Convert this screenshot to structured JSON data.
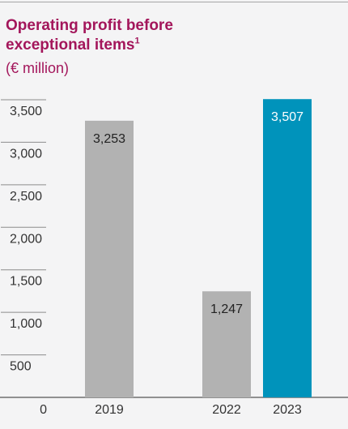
{
  "title_line1": "Operating profit before",
  "title_line2": "exceptional items",
  "title_footnote": "1",
  "unit": "(€ million)",
  "colors": {
    "title": "#a3165b",
    "bar_grey": "#b2b2b2",
    "bar_highlight": "#0093bb",
    "axis": "#555555",
    "background": "#f4f4f5"
  },
  "chart_data": {
    "type": "bar",
    "title": "Operating profit before exceptional items",
    "ylabel": "(€ million)",
    "categories": [
      "2019",
      "2022",
      "2023"
    ],
    "values": [
      3253,
      1247,
      3507
    ],
    "value_labels": [
      "3,253",
      "1,247",
      "3,507"
    ],
    "highlight": [
      "false",
      "false",
      "true"
    ],
    "yticks": [
      0,
      500,
      1000,
      1500,
      2000,
      2500,
      3000,
      3500
    ],
    "ytick_labels": [
      "0",
      "500",
      "1,000",
      "1,500",
      "2,000",
      "2,500",
      "3,000",
      "3,500"
    ],
    "ylim": [
      0,
      3500
    ],
    "grid": false
  }
}
